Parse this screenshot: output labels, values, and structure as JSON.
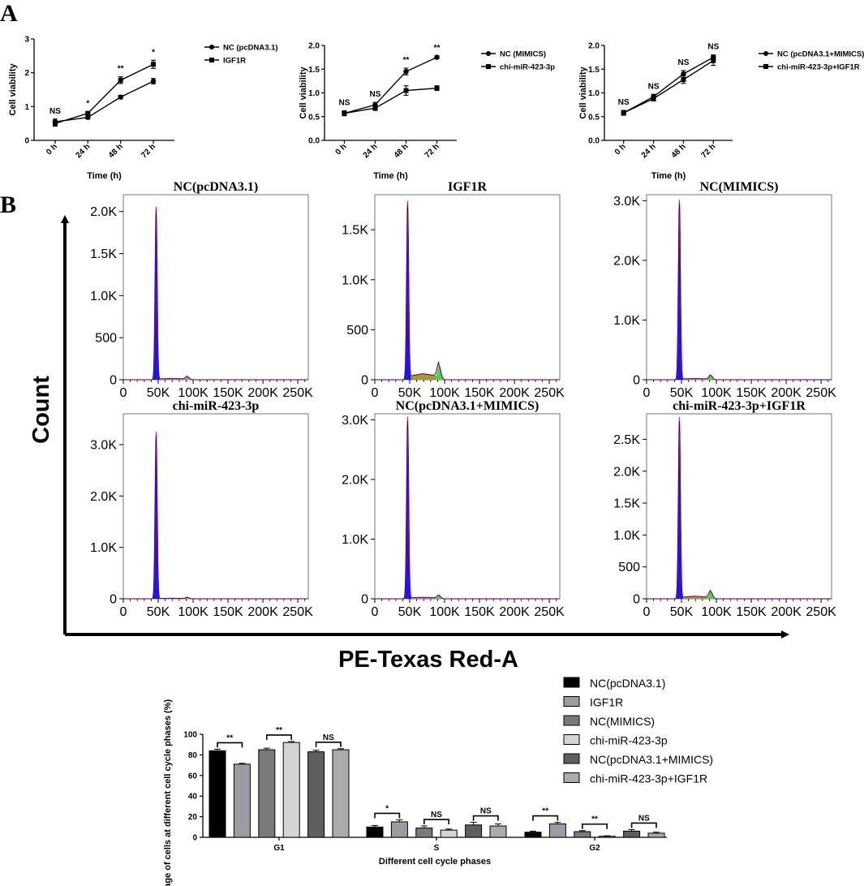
{
  "panels": {
    "a": "A",
    "b": "B"
  },
  "line_charts": [
    {
      "type": "line",
      "categories": [
        "0 h",
        "24 h",
        "48 h",
        "72 h"
      ],
      "xlabel": "Time (h)",
      "ylabel": "Cell viability",
      "ylim": [
        0,
        3
      ],
      "yticks": [
        "0",
        "1",
        "2",
        "3"
      ],
      "yticks_v": [
        0,
        1,
        2,
        3
      ],
      "significance": [
        "NS",
        "*",
        "**",
        "*"
      ],
      "series": [
        {
          "name": "NC (pcDNA3.1)",
          "marker": "circle",
          "values": [
            0.55,
            0.68,
            1.28,
            1.75
          ],
          "errors": [
            0.08,
            0.05,
            0.05,
            0.08
          ]
        },
        {
          "name": "IGF1R",
          "marker": "square",
          "values": [
            0.5,
            0.8,
            1.78,
            2.25
          ],
          "errors": [
            0.08,
            0.05,
            0.1,
            0.12
          ]
        }
      ]
    },
    {
      "type": "line",
      "categories": [
        "0 h",
        "24 h",
        "48 h",
        "72 h"
      ],
      "xlabel": "Time (h)",
      "ylabel": "Cell viability",
      "ylim": [
        0,
        2
      ],
      "yticks": [
        "0.0",
        "0.5",
        "1.0",
        "1.5",
        "2.0"
      ],
      "yticks_v": [
        0,
        0.5,
        1,
        1.5,
        2
      ],
      "significance": [
        "NS",
        "NS",
        "**",
        "**"
      ],
      "series": [
        {
          "name": "NC (MIMICS)",
          "marker": "circle",
          "values": [
            0.57,
            0.75,
            1.45,
            1.75
          ],
          "errors": [
            0.05,
            0.05,
            0.07,
            0.03
          ]
        },
        {
          "name": "chi-miR-423-3p",
          "marker": "square",
          "values": [
            0.57,
            0.68,
            1.05,
            1.1
          ],
          "errors": [
            0.05,
            0.05,
            0.1,
            0.05
          ]
        }
      ]
    },
    {
      "type": "line",
      "categories": [
        "0 h",
        "24 h",
        "48 h",
        "72 h"
      ],
      "xlabel": "Time (h)",
      "ylabel": "Cell viability",
      "ylim": [
        0,
        2
      ],
      "yticks": [
        "0.0",
        "0.5",
        "1.0",
        "1.5",
        "2.0"
      ],
      "yticks_v": [
        0,
        0.5,
        1,
        1.5,
        2
      ],
      "significance": [
        "NS",
        "NS",
        "NS",
        "NS"
      ],
      "series": [
        {
          "name": "NC (pcDNA3.1+MIMICS)",
          "marker": "circle",
          "values": [
            0.58,
            0.92,
            1.4,
            1.75
          ],
          "errors": [
            0.05,
            0.05,
            0.07,
            0.05
          ]
        },
        {
          "name": "chi-miR-423-3p+IGF1R",
          "marker": "square",
          "values": [
            0.58,
            0.88,
            1.28,
            1.68
          ],
          "errors": [
            0.05,
            0.05,
            0.08,
            0.1
          ]
        }
      ]
    }
  ],
  "flow_axes": {
    "x_title": "PE-Texas Red-A",
    "y_title": "Count",
    "xticks": [
      "0",
      "50K",
      "100K",
      "150K",
      "200K",
      "250K"
    ],
    "xticks_v": [
      0,
      50000,
      100000,
      150000,
      200000,
      250000
    ]
  },
  "histograms": [
    {
      "type": "histogram",
      "title": "NC(pcDNA3.1)",
      "ymax": 2200,
      "yticks": [
        "0",
        "500",
        "1.0K",
        "1.5K",
        "2.0K"
      ],
      "yticks_v": [
        0,
        500,
        1000,
        1500,
        2000
      ],
      "peak": 2060,
      "g2peak": 35,
      "sphase": 15
    },
    {
      "type": "histogram",
      "title": "IGF1R",
      "ymax": 1850,
      "yticks": [
        "0",
        "500",
        "1.0K",
        "1.5K"
      ],
      "yticks_v": [
        0,
        500,
        1000,
        1500
      ],
      "peak": 1790,
      "g2peak": 140,
      "sphase": 60
    },
    {
      "type": "histogram",
      "title": "NC(MIMICS)",
      "ymax": 3100,
      "yticks": [
        "0",
        "1.0K",
        "2.0K",
        "3.0K"
      ],
      "yticks_v": [
        0,
        1000,
        2000,
        3000
      ],
      "peak": 3020,
      "g2peak": 70,
      "sphase": 20
    },
    {
      "type": "histogram",
      "title": "chi-miR-423-3p",
      "ymax": 3600,
      "yticks": [
        "0",
        "1.0K",
        "2.0K",
        "3.0K"
      ],
      "yticks_v": [
        0,
        1000,
        2000,
        3000
      ],
      "peak": 3250,
      "g2peak": 25,
      "sphase": 10
    },
    {
      "type": "histogram",
      "title": "NC(pcDNA3.1+MIMICS)",
      "ymax": 3100,
      "yticks": [
        "0",
        "1.0K",
        "2.0K",
        "3.0K"
      ],
      "yticks_v": [
        0,
        1000,
        2000,
        3000
      ],
      "peak": 3050,
      "g2peak": 50,
      "sphase": 25
    },
    {
      "type": "histogram",
      "title": "chi-miR-423-3p+IGF1R",
      "ymax": 2900,
      "yticks": [
        "0",
        "500",
        "1.0K",
        "1.5K",
        "2.0K",
        "2.5K"
      ],
      "yticks_v": [
        0,
        500,
        1000,
        1500,
        2000,
        2500
      ],
      "peak": 2850,
      "g2peak": 110,
      "sphase": 40
    }
  ],
  "bar_chart": {
    "type": "bar",
    "categories": [
      "G1",
      "S",
      "G2"
    ],
    "xlabel": "Different cell cycle phases",
    "ylabel": "Percentage of cells at different cell cycle phases (%)",
    "ylim": [
      0,
      100
    ],
    "yticks": [
      "0",
      "20",
      "40",
      "60",
      "80",
      "100"
    ],
    "yticks_v": [
      0,
      20,
      40,
      60,
      80,
      100
    ],
    "series": [
      {
        "name": "NC(pcDNA3.1)",
        "color": "#000000",
        "values": [
          84,
          10,
          5
        ],
        "errors": [
          1.5,
          1.5,
          1
        ]
      },
      {
        "name": "IGF1R",
        "color": "#9c9ca4",
        "values": [
          71,
          15,
          13
        ],
        "errors": [
          0.8,
          2,
          1.5
        ]
      },
      {
        "name": "NC(MIMICS)",
        "color": "#7a7a7a",
        "values": [
          85,
          9,
          5.5
        ],
        "errors": [
          1.5,
          2,
          1
        ]
      },
      {
        "name": "chi-miR-423-3p",
        "color": "#d4d4d4",
        "values": [
          92,
          7,
          1
        ],
        "errors": [
          1,
          1,
          0.5
        ]
      },
      {
        "name": "NC(pcDNA3.1+MIMICS)",
        "color": "#5e5e5e",
        "values": [
          83,
          12,
          6
        ],
        "errors": [
          1.5,
          2.5,
          1.5
        ]
      },
      {
        "name": "chi-miR-423-3p+IGF1R",
        "color": "#aaaaaa",
        "values": [
          85,
          11,
          4
        ],
        "errors": [
          1,
          2,
          1
        ]
      }
    ],
    "significance": [
      [
        "**",
        "**",
        "NS"
      ],
      [
        "*",
        "NS",
        "NS"
      ],
      [
        "**",
        "**",
        "NS"
      ]
    ]
  }
}
